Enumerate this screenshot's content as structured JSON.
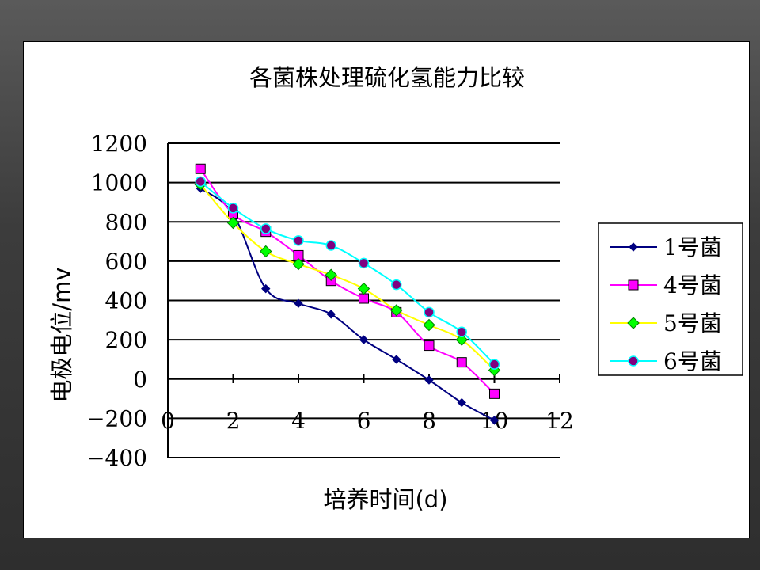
{
  "chart_data": {
    "type": "line",
    "title": "各菌株处理硫化氢能力比较",
    "xlabel": "培养时间(d)",
    "ylabel": "电极电位/mv",
    "xlim": [
      0,
      12
    ],
    "ylim": [
      -400,
      1200
    ],
    "x_ticks": [
      "0",
      "2",
      "4",
      "6",
      "8",
      "10",
      "12"
    ],
    "y_ticks": [
      "1200",
      "1000",
      "800",
      "600",
      "400",
      "200",
      "0",
      "−200",
      "−400"
    ],
    "grid": "horizontal",
    "legend_position": "right",
    "series": [
      {
        "name": "1号菌",
        "color": "#000080",
        "marker": "diamond",
        "x": [
          1,
          2,
          3,
          4,
          5,
          6,
          7,
          8,
          9,
          10
        ],
        "values": [
          970,
          840,
          460,
          385,
          330,
          200,
          100,
          -5,
          -120,
          -210
        ]
      },
      {
        "name": "4号菌",
        "color": "#ff00ff",
        "marker": "square",
        "x": [
          1,
          2,
          3,
          4,
          5,
          6,
          7,
          8,
          9,
          10
        ],
        "values": [
          1070,
          840,
          750,
          630,
          500,
          410,
          340,
          170,
          85,
          -75
        ]
      },
      {
        "name": "5号菌",
        "color": "#ffff00",
        "marker": "diamond",
        "x": [
          1,
          2,
          3,
          4,
          5,
          6,
          7,
          8,
          9,
          10
        ],
        "values": [
          990,
          795,
          650,
          585,
          530,
          460,
          350,
          275,
          200,
          45
        ]
      },
      {
        "name": "6号菌",
        "color": "#00ffff",
        "marker": "circle",
        "x": [
          1,
          2,
          3,
          4,
          5,
          6,
          7,
          8,
          9,
          10
        ],
        "values": [
          1005,
          870,
          765,
          705,
          680,
          590,
          480,
          340,
          240,
          75
        ]
      }
    ]
  }
}
